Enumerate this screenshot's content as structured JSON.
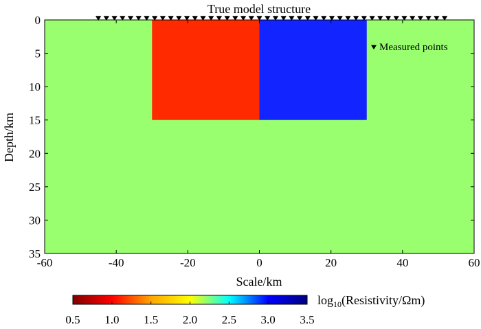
{
  "chart_data": {
    "type": "heatmap",
    "title": "True model structure",
    "xlabel": "Scale/km",
    "ylabel": "Depth/km",
    "xlim": [
      -60,
      60
    ],
    "ylim": [
      0,
      35
    ],
    "y_inverted": true,
    "x_ticks": [
      "-60",
      "-40",
      "-20",
      "0",
      "20",
      "40",
      "60"
    ],
    "y_ticks": [
      "0",
      "5",
      "10",
      "15",
      "20",
      "25",
      "30",
      "35"
    ],
    "background": {
      "color": "#99ff6e"
    },
    "blocks": [
      {
        "x_range": [
          -30,
          0
        ],
        "depth_range": [
          0,
          15
        ],
        "color": "#ff2a00"
      },
      {
        "x_range": [
          0,
          30
        ],
        "depth_range": [
          0,
          15
        ],
        "color": "#1224ff"
      }
    ],
    "measured_points": {
      "label": "Measured points",
      "x_start": -45,
      "x_step": 2.25,
      "count": 44,
      "depth": 0
    },
    "colorbar": {
      "label_prefix": "log",
      "label_sub": "10",
      "label_suffix": "(Resistivity/Ωm)",
      "ticks": [
        "0.5",
        "1.0",
        "1.5",
        "2.0",
        "2.5",
        "3.0",
        "3.5"
      ],
      "range": [
        0.5,
        3.5
      ],
      "colors": [
        "#800000",
        "#ff0000",
        "#ffa500",
        "#ffff00",
        "#00ffff",
        "#0000ff",
        "#00007f"
      ]
    }
  }
}
